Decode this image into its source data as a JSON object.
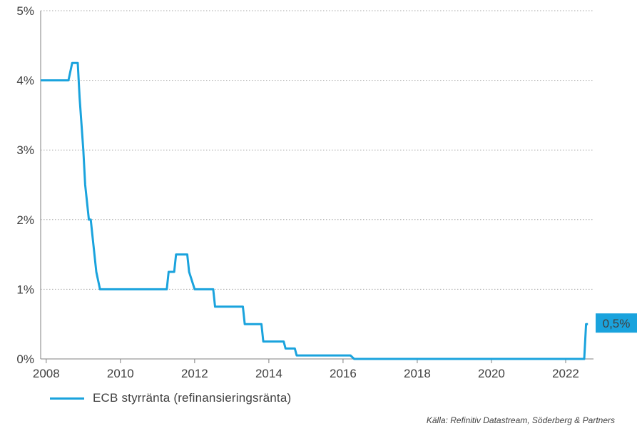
{
  "chart_data": {
    "type": "line",
    "title": "",
    "xlabel": "",
    "ylabel": "",
    "xlim": [
      2007.85,
      2022.75
    ],
    "ylim": [
      0,
      5
    ],
    "x_ticks": [
      2008,
      2010,
      2012,
      2014,
      2016,
      2018,
      2020,
      2022
    ],
    "y_ticks": [
      0,
      1,
      2,
      3,
      4,
      5
    ],
    "y_tick_labels": [
      "0%",
      "1%",
      "2%",
      "3%",
      "4%",
      "5%"
    ],
    "grid": "horizontal-dotted",
    "legend": "bottom-left",
    "series": [
      {
        "name": "ECB styrränta (refinansieringsränta)",
        "color": "#1aa3dd",
        "x": [
          2007.85,
          2008.6,
          2008.7,
          2008.85,
          2008.9,
          2009.0,
          2009.05,
          2009.15,
          2009.2,
          2009.3,
          2009.35,
          2009.45,
          2009.5,
          2011.25,
          2011.3,
          2011.45,
          2011.5,
          2011.8,
          2011.85,
          2012.0,
          2012.05,
          2012.5,
          2012.55,
          2012.6,
          2012.7,
          2013.3,
          2013.35,
          2013.45,
          2013.5,
          2013.8,
          2013.85,
          2014.4,
          2014.45,
          2014.7,
          2014.75,
          2016.15,
          2016.2,
          2016.3,
          2016.35,
          2022.45,
          2022.5,
          2022.55,
          2022.6
        ],
        "values": [
          4.0,
          4.0,
          4.25,
          4.25,
          3.75,
          3.0,
          2.5,
          2.0,
          2.0,
          1.5,
          1.25,
          1.0,
          1.0,
          1.0,
          1.25,
          1.25,
          1.5,
          1.5,
          1.25,
          1.0,
          1.0,
          1.0,
          0.75,
          0.75,
          0.75,
          0.75,
          0.5,
          0.5,
          0.5,
          0.5,
          0.25,
          0.25,
          0.15,
          0.15,
          0.05,
          0.05,
          0.05,
          0.0,
          0.0,
          0.0,
          0.0,
          0.5,
          0.5
        ]
      }
    ],
    "end_label": "0,5%",
    "end_label_bg": "#1aa3dd"
  },
  "legend_label": "ECB styrränta (refinansieringsränta)",
  "source": "Källa: Refinitiv Datastream, Söderberg & Partners"
}
